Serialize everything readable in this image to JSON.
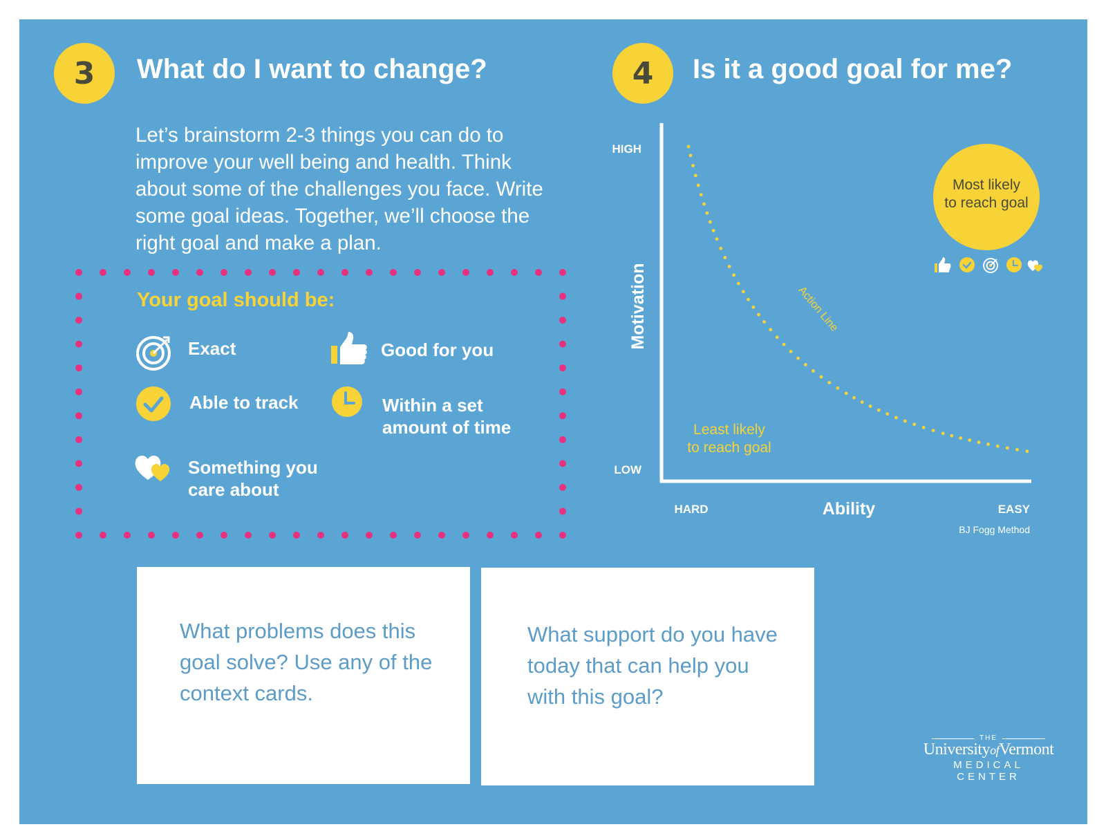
{
  "colors": {
    "panel": "#5ba5d4",
    "accent_yellow": "#f7d337",
    "dot_pink": "#e8317e",
    "card_text": "#5b9cc8"
  },
  "section3": {
    "number": "3",
    "title": "What do I want to change?",
    "intro": "Let’s brainstorm 2-3 things you can do to improve your well being and health. Think about some of the challenges you face. Write some goal ideas. Together, we’ll choose the right goal and make a plan.",
    "goal_box": {
      "title": "Your goal should be:",
      "criteria": [
        {
          "label": "Exact",
          "icon": "target-icon"
        },
        {
          "label": "Good for you",
          "icon": "thumbs-up-icon"
        },
        {
          "label": "Able to track",
          "icon": "checkmark-icon"
        },
        {
          "label": "Within a set amount of time",
          "icon": "clock-icon"
        },
        {
          "label": "Something you care about",
          "icon": "hearts-icon"
        }
      ]
    }
  },
  "section4": {
    "number": "4",
    "title": "Is it a good goal for me?",
    "chart": {
      "y_label": "Motivation",
      "x_label": "Ability",
      "y_high": "HIGH",
      "y_low": "LOW",
      "x_hard": "HARD",
      "x_easy": "EASY",
      "curve_label": "Action Line",
      "least_likely": "Least likely to reach goal",
      "most_likely": "Most likely to reach goal",
      "credit": "BJ Fogg Method",
      "icons": [
        "thumbs-up-icon",
        "checkmark-icon",
        "target-icon",
        "clock-icon",
        "hearts-icon"
      ]
    }
  },
  "cards": [
    {
      "text": "What problems does this goal solve? Use any of the context cards."
    },
    {
      "text": "What support do you have today that can help you with this goal?"
    }
  ],
  "logo": {
    "the": "THE",
    "university": "University",
    "of": "of",
    "vermont": "Vermont",
    "medical_center": "MEDICAL CENTER"
  }
}
